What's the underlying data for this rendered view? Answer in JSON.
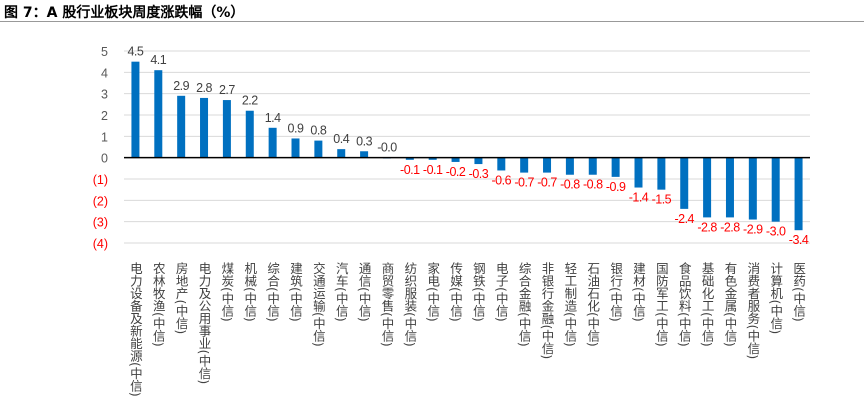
{
  "chart_data": {
    "type": "bar",
    "title": "图 7：A 股行业板块周度涨跌幅（%）",
    "xlabel": "",
    "ylabel": "",
    "ylim": [
      -4,
      5
    ],
    "yticks": [
      5,
      4,
      3,
      2,
      1,
      0,
      -1,
      -2,
      -3,
      -4
    ],
    "ytick_labels": [
      "5",
      "4",
      "3",
      "2",
      "1",
      "0",
      "(1)",
      "(2)",
      "(3)",
      "(4)"
    ],
    "grid": true,
    "legend": "none",
    "colors": {
      "bar": "#0070C0",
      "positive_label": "#404040",
      "negative_label": "#FF0000",
      "grid": "#D9D9D9"
    },
    "categories": [
      "电力设备及新能源(中信)",
      "农林牧渔(中信)",
      "房地产(中信)",
      "电力及公用事业(中信)",
      "煤炭(中信)",
      "机械(中信)",
      "综合(中信)",
      "建筑(中信)",
      "交通运输(中信)",
      "汽车(中信)",
      "通信(中信)",
      "商贸零售(中信)",
      "纺织服装(中信)",
      "家电(中信)",
      "传媒(中信)",
      "钢铁(中信)",
      "电子(中信)",
      "综合金融(中信)",
      "非银行金融(中信)",
      "轻工制造(中信)",
      "石油石化(中信)",
      "银行(中信)",
      "建材(中信)",
      "国防军工(中信)",
      "食品饮料(中信)",
      "基础化工(中信)",
      "有色金属(中信)",
      "消费者服务(中信)",
      "计算机(中信)",
      "医药(中信)"
    ],
    "values": [
      4.5,
      4.1,
      2.9,
      2.8,
      2.7,
      2.2,
      1.4,
      0.9,
      0.8,
      0.4,
      0.3,
      -0.0,
      -0.1,
      -0.1,
      -0.2,
      -0.3,
      -0.6,
      -0.7,
      -0.7,
      -0.8,
      -0.8,
      -0.9,
      -1.4,
      -1.5,
      -2.4,
      -2.8,
      -2.8,
      -2.9,
      -3.0,
      -3.4
    ],
    "data_labels": [
      "4.5",
      "4.1",
      "2.9",
      "2.8",
      "2.7",
      "2.2",
      "1.4",
      "0.9",
      "0.8",
      "0.4",
      "0.3",
      "-0.0",
      "-0.1",
      "-0.1",
      "-0.2",
      "-0.3",
      "-0.6",
      "-0.7",
      "-0.7",
      "-0.8",
      "-0.8",
      "-0.9",
      "-1.4",
      "-1.5",
      "-2.4",
      "-2.8",
      "-2.8",
      "-2.9",
      "-3.0",
      "-3.4"
    ]
  }
}
